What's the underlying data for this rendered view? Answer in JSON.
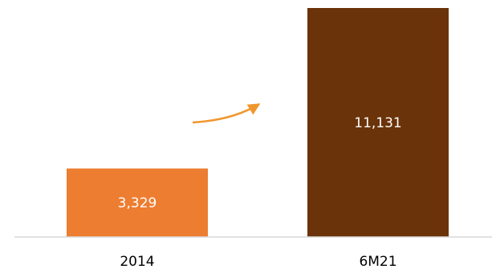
{
  "chart_data": {
    "type": "bar",
    "title": "",
    "xlabel": "",
    "ylabel": "",
    "categories": [
      "2014",
      "6M21"
    ],
    "values": [
      3329,
      11131
    ],
    "value_labels": [
      "3,329",
      "11,131"
    ],
    "ylim": [
      0,
      11131
    ],
    "grid": false,
    "legend": "none",
    "bar_colors": [
      "#ED7D31",
      "#6B3309"
    ],
    "axis_color": "#D9D9D9",
    "arrow_color": "#F0962E",
    "annotations": [
      {
        "type": "arrow",
        "meaning": "growth",
        "from_category": "2014",
        "to_category": "6M21"
      }
    ]
  }
}
